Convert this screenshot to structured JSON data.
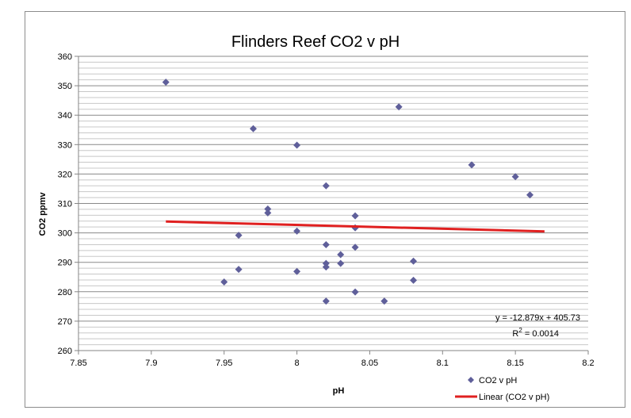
{
  "chart_data": {
    "type": "scatter",
    "title": "Flinders Reef CO2 v pH",
    "xlabel": "pH",
    "ylabel": "CO2 ppmv",
    "xlim": [
      7.85,
      8.2
    ],
    "ylim": [
      260,
      360
    ],
    "x_ticks": [
      7.85,
      7.9,
      7.95,
      8,
      8.05,
      8.1,
      8.15,
      8.2
    ],
    "x_tick_labels": [
      "7.85",
      "7.9",
      "7.95",
      "8",
      "8.05",
      "8.1",
      "8.15",
      "8.2"
    ],
    "y_ticks": [
      260,
      270,
      280,
      290,
      300,
      310,
      320,
      330,
      340,
      350,
      360
    ],
    "y_tick_labels": [
      "260",
      "270",
      "280",
      "290",
      "300",
      "310",
      "320",
      "330",
      "340",
      "350",
      "360"
    ],
    "grid": true,
    "legend_position": "bottom-right",
    "series": [
      {
        "name": "CO2 v pH",
        "color": "#5f5f9a",
        "marker": "diamond",
        "points": [
          {
            "x": 7.91,
            "y": 351.2
          },
          {
            "x": 7.95,
            "y": 283.3
          },
          {
            "x": 7.96,
            "y": 299.2
          },
          {
            "x": 7.96,
            "y": 287.6
          },
          {
            "x": 7.97,
            "y": 335.4
          },
          {
            "x": 7.98,
            "y": 308.1
          },
          {
            "x": 7.98,
            "y": 306.8
          },
          {
            "x": 8.0,
            "y": 329.8
          },
          {
            "x": 8.0,
            "y": 300.6
          },
          {
            "x": 8.0,
            "y": 286.9
          },
          {
            "x": 8.02,
            "y": 316.0
          },
          {
            "x": 8.02,
            "y": 296.0
          },
          {
            "x": 8.02,
            "y": 289.6
          },
          {
            "x": 8.02,
            "y": 288.4
          },
          {
            "x": 8.02,
            "y": 276.8
          },
          {
            "x": 8.03,
            "y": 292.6
          },
          {
            "x": 8.03,
            "y": 289.6
          },
          {
            "x": 8.04,
            "y": 305.8
          },
          {
            "x": 8.04,
            "y": 301.7
          },
          {
            "x": 8.04,
            "y": 295.1
          },
          {
            "x": 8.04,
            "y": 279.9
          },
          {
            "x": 8.06,
            "y": 276.8
          },
          {
            "x": 8.07,
            "y": 342.8
          },
          {
            "x": 8.08,
            "y": 290.4
          },
          {
            "x": 8.08,
            "y": 283.9
          },
          {
            "x": 8.12,
            "y": 323.1
          },
          {
            "x": 8.15,
            "y": 319.1
          },
          {
            "x": 8.16,
            "y": 312.9
          }
        ]
      }
    ],
    "trendline": {
      "name": "Linear (CO2 v pH)",
      "color": "#e02020",
      "slope": -12.879,
      "intercept": 405.73,
      "x_range": [
        7.91,
        8.17
      ],
      "equation_label": "y = -12.879x + 405.73",
      "r2_prefix": "R",
      "r2_sup": "2",
      "r2_value": " = 0.0014"
    }
  }
}
